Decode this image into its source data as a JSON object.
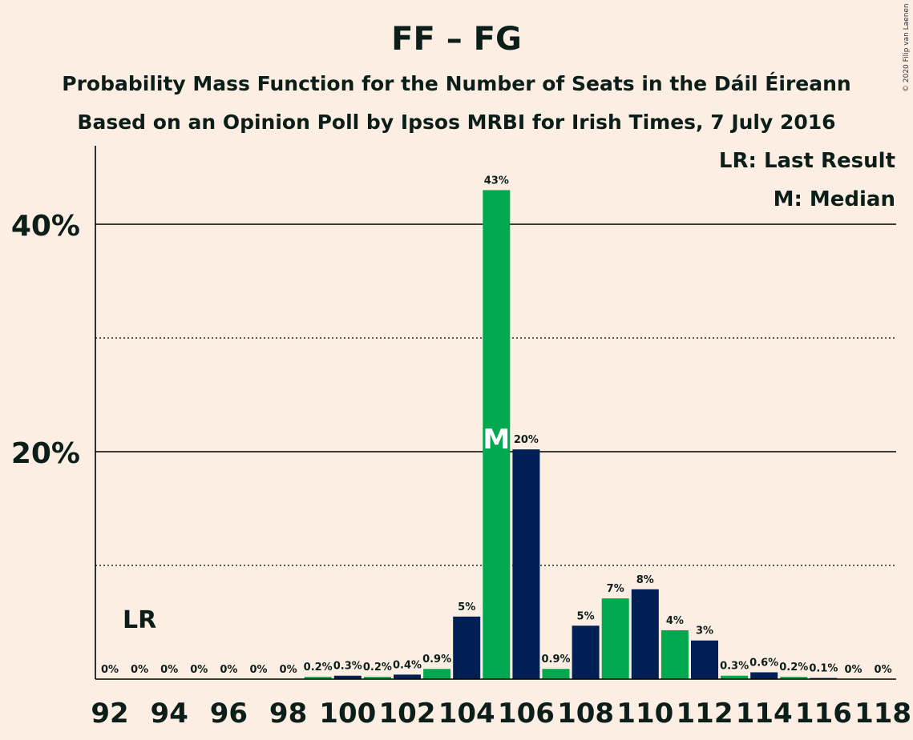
{
  "title": "FF – FG",
  "subtitle1": "Probability Mass Function for the Number of Seats in the Dáil Éireann",
  "subtitle2": "Based on an Opinion Poll by Ipsos MRBI for Irish Times, 7 July 2016",
  "copyright": "© 2020 Filip van Laenen",
  "colors": {
    "background": "#fdeee3",
    "navy": "#001f54",
    "green": "#00a94f",
    "text": "#0c1e19"
  },
  "chart_data": {
    "type": "bar",
    "x": [
      92,
      93,
      94,
      95,
      96,
      97,
      98,
      99,
      100,
      101,
      102,
      103,
      104,
      105,
      106,
      107,
      108,
      109,
      110,
      111,
      112,
      113,
      114,
      115,
      116,
      117,
      118
    ],
    "values": [
      0,
      0,
      0,
      0,
      0,
      0,
      0,
      0.2,
      0.3,
      0.2,
      0.4,
      0.9,
      5.5,
      43,
      20.2,
      0.9,
      4.7,
      7.1,
      7.9,
      4.3,
      3.4,
      0.3,
      0.6,
      0.2,
      0.1,
      0,
      0
    ],
    "data_labels": [
      "0%",
      "0%",
      "0%",
      "0%",
      "0%",
      "0%",
      "0%",
      "0.2%",
      "0.3%",
      "0.2%",
      "0.4%",
      "0.9%",
      "5%",
      "43%",
      "20%",
      "0.9%",
      "5%",
      "7%",
      "8%",
      "4%",
      "3%",
      "0.3%",
      "0.6%",
      "0.2%",
      "0.1%",
      "0%",
      "0%"
    ],
    "bar_colors": [
      "navy",
      "green",
      "navy",
      "green",
      "navy",
      "green",
      "navy",
      "green",
      "navy",
      "green",
      "navy",
      "green",
      "navy",
      "green",
      "navy",
      "green",
      "navy",
      "green",
      "navy",
      "green",
      "navy",
      "green",
      "navy",
      "green",
      "navy",
      "green",
      "navy"
    ],
    "x_tick_labels": [
      "92",
      "94",
      "96",
      "98",
      "100",
      "102",
      "104",
      "106",
      "108",
      "110",
      "112",
      "114",
      "116",
      "118"
    ],
    "y_ticks": [
      {
        "value": 10,
        "style": "dotted",
        "label": ""
      },
      {
        "value": 20,
        "style": "solid",
        "label": "20%"
      },
      {
        "value": 30,
        "style": "dotted",
        "label": ""
      },
      {
        "value": 40,
        "style": "solid",
        "label": "40%"
      }
    ],
    "ylim": [
      0,
      47
    ],
    "last_result": {
      "seats": 93,
      "label": "LR"
    },
    "median": {
      "seats": 105,
      "label": "M"
    },
    "legend": {
      "position": "top-right",
      "entries": [
        "LR: Last Result",
        "M: Median"
      ]
    }
  }
}
